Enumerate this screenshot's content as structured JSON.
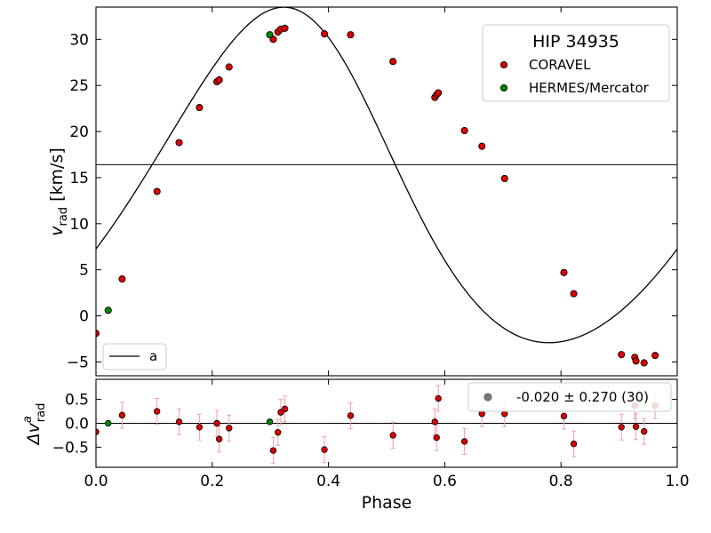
{
  "chart_data": [
    {
      "type": "scatter",
      "panel": "top",
      "ylabel": {
        "main": "v",
        "sub": "rad",
        "rest": " [km/s]"
      },
      "xlim": [
        0.0,
        1.0
      ],
      "ylim": [
        -6.5,
        33.5
      ],
      "yticks": [
        -5,
        0,
        5,
        10,
        15,
        20,
        25,
        30
      ],
      "systemic_velocity": 16.4,
      "legend_title": "HIP 34935",
      "legend_fit_label": "a",
      "colors": {
        "coravel": "#dd0000",
        "hermes": "#008800",
        "curve": "#000000"
      },
      "series": [
        {
          "name": "CORAVEL",
          "x": [
            0.0,
            0.045,
            0.105,
            0.143,
            0.178,
            0.208,
            0.212,
            0.229,
            0.305,
            0.313,
            0.318,
            0.325,
            0.393,
            0.438,
            0.511,
            0.583,
            0.586,
            0.589,
            0.634,
            0.664,
            0.703,
            0.805,
            0.822,
            0.904,
            0.927,
            0.929,
            0.943,
            0.962
          ],
          "y": [
            -1.9,
            4.0,
            13.5,
            18.8,
            22.6,
            25.4,
            25.6,
            27.0,
            30.0,
            30.8,
            31.1,
            31.2,
            30.6,
            30.5,
            27.6,
            23.7,
            24.0,
            24.2,
            20.1,
            18.4,
            14.9,
            4.7,
            2.4,
            -4.2,
            -4.5,
            -4.9,
            -5.1,
            -4.3
          ]
        },
        {
          "name": "HERMES/Mercator",
          "x": [
            0.021,
            0.299
          ],
          "y": [
            0.6,
            30.5
          ]
        },
        {
          "name": "a",
          "kind": "orbit-fit",
          "model": {
            "K": 18.2,
            "e": 0.12,
            "omega_deg": 35,
            "gamma": 13.5,
            "phase_offset": 0.4
          }
        }
      ]
    },
    {
      "type": "scatter",
      "panel": "residuals",
      "xlabel": "Phase",
      "ylabel": {
        "main": "Δv",
        "sup": "a",
        "sub": "rad"
      },
      "xlim": [
        0.0,
        1.0
      ],
      "ylim": [
        -0.92,
        0.92
      ],
      "yticks": [
        -0.5,
        0.0,
        0.5
      ],
      "xticks": [
        0.0,
        0.2,
        0.4,
        0.6,
        0.8,
        1.0
      ],
      "legend_text": "-0.020 ± 0.270 (30)",
      "series": [
        {
          "name": "CORAVEL",
          "x": [
            0.0,
            0.045,
            0.105,
            0.143,
            0.178,
            0.208,
            0.212,
            0.229,
            0.305,
            0.313,
            0.318,
            0.325,
            0.393,
            0.438,
            0.511,
            0.583,
            0.586,
            0.589,
            0.634,
            0.664,
            0.703,
            0.805,
            0.822,
            0.904,
            0.927,
            0.929,
            0.943,
            0.962
          ],
          "y": [
            -0.18,
            0.17,
            0.25,
            0.03,
            -0.08,
            0.0,
            -0.33,
            -0.1,
            -0.57,
            -0.19,
            0.23,
            0.3,
            -0.55,
            0.16,
            -0.25,
            0.03,
            -0.3,
            0.52,
            -0.38,
            0.2,
            0.2,
            0.15,
            -0.43,
            -0.08,
            0.37,
            -0.07,
            -0.17,
            0.37
          ],
          "err": [
            0.27,
            0.27,
            0.27,
            0.27,
            0.27,
            0.27,
            0.27,
            0.27,
            0.27,
            0.27,
            0.27,
            0.27,
            0.27,
            0.27,
            0.27,
            0.27,
            0.27,
            0.27,
            0.27,
            0.27,
            0.27,
            0.27,
            0.27,
            0.27,
            0.27,
            0.27,
            0.27,
            0.27
          ]
        },
        {
          "name": "HERMES/Mercator",
          "x": [
            0.021,
            0.299
          ],
          "y": [
            0.0,
            0.03
          ],
          "err": [
            0.0,
            0.0
          ]
        }
      ]
    }
  ]
}
